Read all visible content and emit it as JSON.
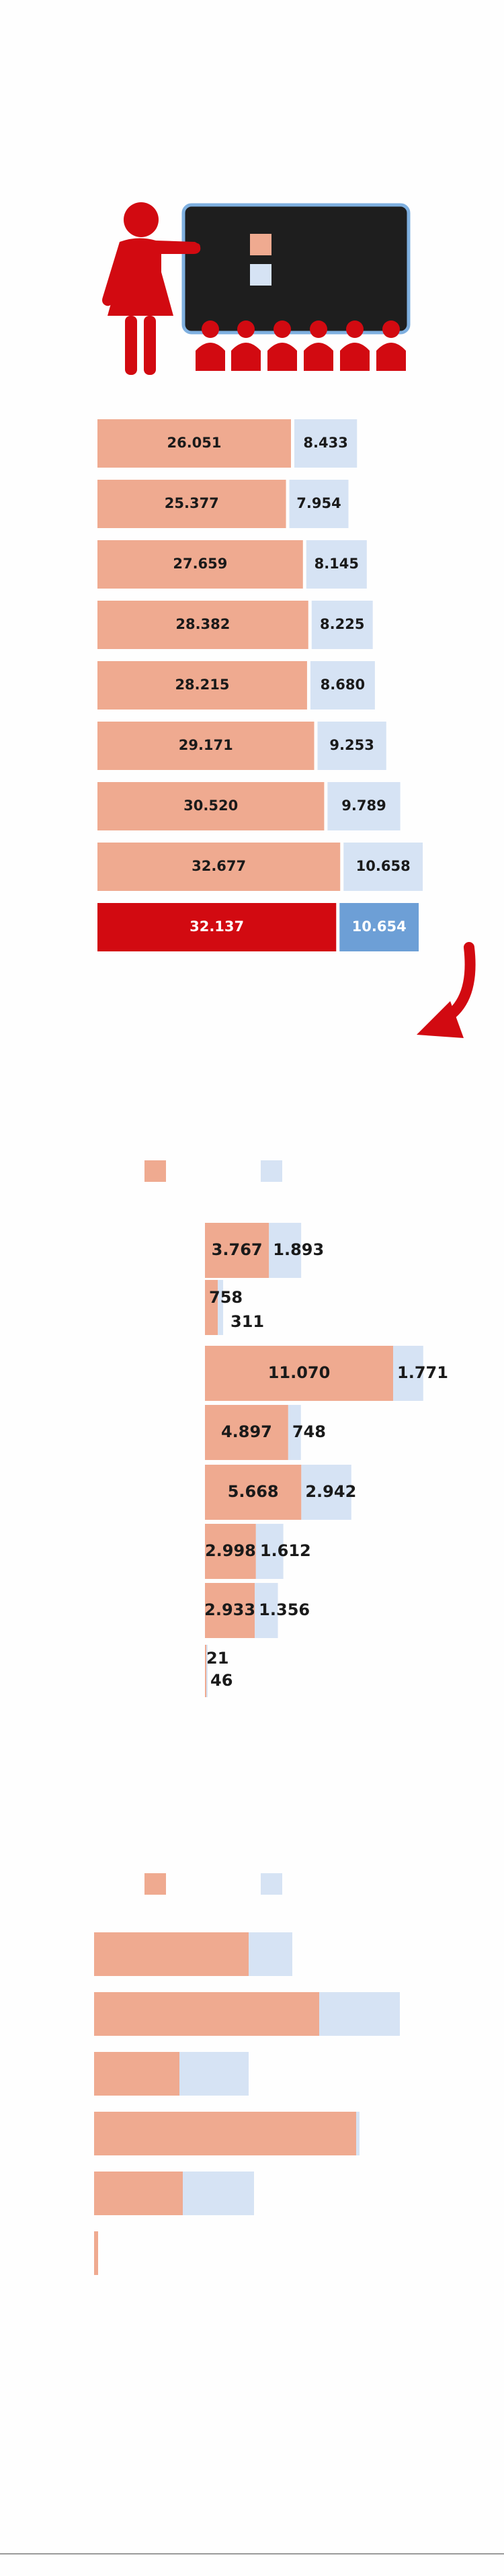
{
  "colors": {
    "primary": "#efaa90",
    "secondary": "#d6e3f4",
    "highlight_primary": "#d20a11",
    "highlight_secondary": "#6d9fd6",
    "icon_red": "#d20a11",
    "board_dark": "#1e1e1e",
    "board_border": "#7fb0e0"
  },
  "icons": {
    "teacher": "teacher-at-board-icon",
    "arrow": "curved-arrow-down-icon"
  },
  "chart_data": [
    {
      "type": "bar",
      "orientation": "horizontal",
      "stacked": true,
      "rows": [
        {
          "a": 26051,
          "b": 8433,
          "label_a": "26.051",
          "label_b": "8.433"
        },
        {
          "a": 25377,
          "b": 7954,
          "label_a": "25.377",
          "label_b": "7.954"
        },
        {
          "a": 27659,
          "b": 8145,
          "label_a": "27.659",
          "label_b": "8.145"
        },
        {
          "a": 28382,
          "b": 8225,
          "label_a": "28.382",
          "label_b": "8.225"
        },
        {
          "a": 28215,
          "b": 8680,
          "label_a": "28.215",
          "label_b": "8.680"
        },
        {
          "a": 29171,
          "b": 9253,
          "label_a": "29.171",
          "label_b": "9.253"
        },
        {
          "a": 30520,
          "b": 9789,
          "label_a": "30.520",
          "label_b": "9.789"
        },
        {
          "a": 32677,
          "b": 10658,
          "label_a": "32.677",
          "label_b": "10.658"
        },
        {
          "a": 32137,
          "b": 10654,
          "label_a": "32.137",
          "label_b": "10.654",
          "highlight": true
        }
      ]
    },
    {
      "type": "bar",
      "orientation": "horizontal",
      "stacked": true,
      "legend": [
        {
          "color": "#efaa90"
        },
        {
          "color": "#d6e3f4"
        }
      ],
      "rows": [
        {
          "a": 3767,
          "b": 1893,
          "label_a": "3.767",
          "label_b": "1.893"
        },
        {
          "a": 758,
          "b": 311,
          "label_a": "758",
          "label_b": "311"
        },
        {
          "a": 11070,
          "b": 1771,
          "label_a": "11.070",
          "label_b": "1.771"
        },
        {
          "a": 4897,
          "b": 748,
          "label_a": "4.897",
          "label_b": "748"
        },
        {
          "a": 5668,
          "b": 2942,
          "label_a": "5.668",
          "label_b": "2.942"
        },
        {
          "a": 2998,
          "b": 1612,
          "label_a": "2.998",
          "label_b": "1.612"
        },
        {
          "a": 2933,
          "b": 1356,
          "label_a": "2.933",
          "label_b": "1.356"
        },
        {
          "a": 21,
          "b": 46,
          "label_a": "21",
          "label_b": "46"
        }
      ]
    },
    {
      "type": "bar",
      "orientation": "horizontal",
      "stacked": true,
      "legend": [
        {
          "color": "#efaa90"
        },
        {
          "color": "#d6e3f4"
        }
      ],
      "rows": [
        {
          "a": 230,
          "b": 65
        },
        {
          "a": 335,
          "b": 120
        },
        {
          "a": 127,
          "b": 103
        },
        {
          "a": 390,
          "b": 5
        },
        {
          "a": 132,
          "b": 106
        },
        {
          "a": 6,
          "b": 0
        }
      ]
    }
  ]
}
